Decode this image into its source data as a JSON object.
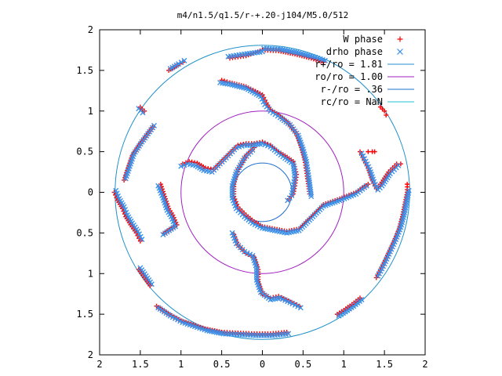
{
  "chart_data": {
    "type": "scatter",
    "title": "m4/n1.5/q1.5/r-+.20-j104/M5.0/512",
    "xlim": [
      -2,
      2
    ],
    "ylim": [
      -2,
      2
    ],
    "x_ticks": [
      -2,
      -1.5,
      -1,
      -0.5,
      0,
      0.5,
      1,
      1.5,
      2
    ],
    "y_ticks": [
      -2,
      -1.5,
      -1,
      -0.5,
      0,
      0.5,
      1,
      1.5,
      2
    ],
    "x_tick_labels": [
      "2",
      "1.5",
      "1",
      "0.5",
      "0",
      "0.5",
      "1",
      "1.5",
      "2"
    ],
    "y_tick_labels": [
      "2",
      "1.5",
      "1",
      "0.5",
      "0",
      "0.5",
      "1",
      "1.5",
      "2"
    ],
    "grid": false,
    "legend_position": "top-right",
    "series": [
      {
        "name": "W phase",
        "marker": "plus",
        "color": "#ff0000",
        "arms": [
          [
            [
              -0.98,
              0.35
            ],
            [
              -0.9,
              0.38
            ],
            [
              -0.8,
              0.36
            ],
            [
              -0.7,
              0.3
            ],
            [
              -0.6,
              0.28
            ],
            [
              -0.5,
              0.38
            ],
            [
              -0.4,
              0.48
            ],
            [
              -0.3,
              0.58
            ],
            [
              -0.2,
              0.6
            ],
            [
              -0.1,
              0.6
            ],
            [
              0.0,
              0.62
            ],
            [
              0.1,
              0.58
            ],
            [
              0.2,
              0.5
            ],
            [
              0.28,
              0.45
            ],
            [
              0.38,
              0.38
            ],
            [
              0.42,
              0.22
            ],
            [
              0.4,
              0.08
            ],
            [
              0.38,
              -0.02
            ],
            [
              0.33,
              -0.08
            ]
          ],
          [
            [
              0.58,
              -0.02
            ],
            [
              0.55,
              0.2
            ],
            [
              0.52,
              0.4
            ],
            [
              0.48,
              0.55
            ],
            [
              0.42,
              0.72
            ],
            [
              0.32,
              0.85
            ],
            [
              0.2,
              0.95
            ],
            [
              0.1,
              1.02
            ],
            [
              0.05,
              1.1
            ],
            [
              0.0,
              1.2
            ],
            [
              -0.2,
              1.3
            ],
            [
              -0.4,
              1.35
            ],
            [
              -0.5,
              1.38
            ]
          ],
          [
            [
              -0.1,
              0.55
            ],
            [
              -0.2,
              0.45
            ],
            [
              -0.3,
              0.28
            ],
            [
              -0.35,
              0.1
            ],
            [
              -0.35,
              -0.05
            ],
            [
              -0.3,
              -0.18
            ],
            [
              -0.2,
              -0.28
            ],
            [
              -0.1,
              -0.36
            ],
            [
              0.0,
              -0.42
            ],
            [
              0.15,
              -0.45
            ],
            [
              0.3,
              -0.48
            ],
            [
              0.45,
              -0.45
            ],
            [
              0.6,
              -0.3
            ],
            [
              0.75,
              -0.15
            ],
            [
              0.95,
              -0.08
            ],
            [
              1.15,
              0.0
            ],
            [
              1.3,
              0.1
            ]
          ],
          [
            [
              -0.35,
              -0.52
            ],
            [
              -0.3,
              -0.65
            ],
            [
              -0.2,
              -0.75
            ],
            [
              -0.1,
              -0.8
            ],
            [
              -0.05,
              -0.95
            ],
            [
              -0.05,
              -1.1
            ],
            [
              0.0,
              -1.25
            ],
            [
              0.1,
              -1.3
            ],
            [
              0.2,
              -1.28
            ],
            [
              0.35,
              -1.35
            ],
            [
              0.45,
              -1.4
            ]
          ],
          [
            [
              -1.25,
              0.1
            ],
            [
              -1.2,
              -0.05
            ],
            [
              -1.15,
              -0.2
            ],
            [
              -1.1,
              -0.28
            ],
            [
              -1.05,
              -0.4
            ],
            [
              -1.2,
              -0.5
            ]
          ],
          [
            [
              -1.82,
              0.0
            ],
            [
              -1.78,
              -0.1
            ],
            [
              -1.72,
              -0.2
            ],
            [
              -1.68,
              -0.3
            ],
            [
              -1.62,
              -0.4
            ],
            [
              -1.55,
              -0.5
            ],
            [
              -1.5,
              -0.6
            ]
          ],
          [
            [
              -1.35,
              0.8
            ],
            [
              -1.5,
              0.6
            ],
            [
              -1.6,
              0.45
            ],
            [
              -1.65,
              0.3
            ],
            [
              -1.7,
              0.15
            ]
          ],
          [
            [
              -1.52,
              -0.95
            ],
            [
              -1.45,
              -1.05
            ],
            [
              -1.38,
              -1.15
            ]
          ],
          [
            [
              -1.3,
              -1.4
            ],
            [
              -1.15,
              -1.5
            ],
            [
              -1.0,
              -1.58
            ],
            [
              -0.85,
              -1.63
            ],
            [
              -0.7,
              -1.68
            ],
            [
              -0.5,
              -1.72
            ],
            [
              -0.3,
              -1.73
            ],
            [
              -0.1,
              -1.74
            ],
            [
              0.1,
              -1.74
            ],
            [
              0.3,
              -1.72
            ]
          ],
          [
            [
              0.92,
              -1.5
            ],
            [
              1.0,
              -1.45
            ],
            [
              1.1,
              -1.38
            ],
            [
              1.2,
              -1.3
            ]
          ],
          [
            [
              1.4,
              -1.05
            ],
            [
              1.48,
              -0.9
            ],
            [
              1.55,
              -0.75
            ],
            [
              1.62,
              -0.6
            ],
            [
              1.68,
              -0.45
            ],
            [
              1.72,
              -0.3
            ],
            [
              1.75,
              -0.15
            ],
            [
              1.78,
              0.0
            ],
            [
              1.78,
              0.1
            ]
          ],
          [
            [
              1.2,
              0.5
            ],
            [
              1.25,
              0.4
            ],
            [
              1.3,
              0.3
            ],
            [
              1.35,
              0.15
            ],
            [
              1.4,
              0.05
            ],
            [
              1.45,
              0.1
            ],
            [
              1.55,
              0.25
            ],
            [
              1.65,
              0.35
            ],
            [
              1.7,
              0.35
            ]
          ],
          [
            [
              1.45,
              1.05
            ],
            [
              1.5,
              1.0
            ],
            [
              1.52,
              0.95
            ]
          ],
          [
            [
              1.3,
              0.5
            ],
            [
              1.35,
              0.5
            ],
            [
              1.38,
              0.5
            ]
          ],
          [
            [
              0.0,
              1.75
            ],
            [
              0.2,
              1.74
            ],
            [
              0.4,
              1.7
            ],
            [
              0.6,
              1.65
            ],
            [
              0.75,
              1.6
            ]
          ],
          [
            [
              -0.4,
              1.65
            ],
            [
              -0.2,
              1.68
            ],
            [
              0.0,
              1.75
            ]
          ],
          [
            [
              -1.15,
              1.5
            ],
            [
              -1.05,
              1.56
            ],
            [
              -0.98,
              1.6
            ]
          ],
          [
            [
              -1.5,
              1.05
            ],
            [
              -1.45,
              1.0
            ]
          ]
        ]
      },
      {
        "name": "drho phase",
        "marker": "cross",
        "color": "#3a8fe8",
        "arms": [
          [
            [
              -1.0,
              0.32
            ],
            [
              -0.92,
              0.35
            ],
            [
              -0.82,
              0.33
            ],
            [
              -0.72,
              0.27
            ],
            [
              -0.62,
              0.25
            ],
            [
              -0.52,
              0.35
            ],
            [
              -0.42,
              0.45
            ],
            [
              -0.32,
              0.55
            ],
            [
              -0.22,
              0.58
            ],
            [
              -0.12,
              0.58
            ],
            [
              0.0,
              0.6
            ],
            [
              0.1,
              0.56
            ],
            [
              0.2,
              0.48
            ],
            [
              0.28,
              0.42
            ],
            [
              0.38,
              0.35
            ],
            [
              0.4,
              0.2
            ],
            [
              0.38,
              0.06
            ],
            [
              0.36,
              -0.04
            ],
            [
              0.31,
              -0.1
            ]
          ],
          [
            [
              0.6,
              -0.05
            ],
            [
              0.57,
              0.18
            ],
            [
              0.54,
              0.38
            ],
            [
              0.5,
              0.53
            ],
            [
              0.44,
              0.7
            ],
            [
              0.34,
              0.83
            ],
            [
              0.22,
              0.92
            ],
            [
              0.1,
              1.0
            ],
            [
              0.03,
              1.08
            ],
            [
              -0.02,
              1.18
            ],
            [
              -0.2,
              1.28
            ],
            [
              -0.4,
              1.33
            ],
            [
              -0.52,
              1.35
            ]
          ],
          [
            [
              -0.12,
              0.52
            ],
            [
              -0.22,
              0.42
            ],
            [
              -0.32,
              0.25
            ],
            [
              -0.37,
              0.08
            ],
            [
              -0.37,
              -0.07
            ],
            [
              -0.32,
              -0.2
            ],
            [
              -0.22,
              -0.3
            ],
            [
              -0.12,
              -0.38
            ],
            [
              0.0,
              -0.44
            ],
            [
              0.15,
              -0.47
            ],
            [
              0.3,
              -0.5
            ],
            [
              0.45,
              -0.47
            ],
            [
              0.6,
              -0.32
            ],
            [
              0.75,
              -0.17
            ],
            [
              0.95,
              -0.1
            ],
            [
              1.15,
              -0.02
            ],
            [
              1.28,
              0.08
            ]
          ],
          [
            [
              -0.37,
              -0.5
            ],
            [
              -0.32,
              -0.63
            ],
            [
              -0.22,
              -0.73
            ],
            [
              -0.12,
              -0.78
            ],
            [
              -0.07,
              -0.93
            ],
            [
              -0.07,
              -1.08
            ],
            [
              -0.02,
              -1.23
            ],
            [
              0.1,
              -1.32
            ],
            [
              0.22,
              -1.3
            ],
            [
              0.37,
              -1.37
            ],
            [
              0.47,
              -1.42
            ]
          ],
          [
            [
              -1.28,
              0.08
            ],
            [
              -1.22,
              -0.07
            ],
            [
              -1.17,
              -0.22
            ],
            [
              -1.12,
              -0.3
            ],
            [
              -1.07,
              -0.42
            ],
            [
              -1.22,
              -0.52
            ]
          ],
          [
            [
              -1.8,
              0.02
            ],
            [
              -1.76,
              -0.08
            ],
            [
              -1.7,
              -0.18
            ],
            [
              -1.66,
              -0.28
            ],
            [
              -1.6,
              -0.38
            ],
            [
              -1.53,
              -0.48
            ],
            [
              -1.48,
              -0.58
            ]
          ],
          [
            [
              -1.33,
              0.82
            ],
            [
              -1.48,
              0.62
            ],
            [
              -1.58,
              0.47
            ],
            [
              -1.63,
              0.32
            ],
            [
              -1.68,
              0.17
            ]
          ],
          [
            [
              -1.5,
              -0.93
            ],
            [
              -1.43,
              -1.03
            ],
            [
              -1.36,
              -1.13
            ]
          ],
          [
            [
              -1.28,
              -1.42
            ],
            [
              -1.13,
              -1.52
            ],
            [
              -0.98,
              -1.6
            ],
            [
              -0.83,
              -1.65
            ],
            [
              -0.68,
              -1.7
            ],
            [
              -0.48,
              -1.74
            ],
            [
              -0.28,
              -1.75
            ],
            [
              -0.08,
              -1.76
            ],
            [
              0.12,
              -1.76
            ],
            [
              0.32,
              -1.74
            ]
          ],
          [
            [
              0.94,
              -1.52
            ],
            [
              1.02,
              -1.47
            ],
            [
              1.12,
              -1.4
            ],
            [
              1.22,
              -1.32
            ]
          ],
          [
            [
              1.42,
              -1.03
            ],
            [
              1.5,
              -0.88
            ],
            [
              1.57,
              -0.73
            ],
            [
              1.64,
              -0.58
            ],
            [
              1.7,
              -0.43
            ],
            [
              1.74,
              -0.28
            ],
            [
              1.77,
              -0.13
            ],
            [
              1.8,
              0.02
            ]
          ],
          [
            [
              1.22,
              0.48
            ],
            [
              1.27,
              0.38
            ],
            [
              1.32,
              0.28
            ],
            [
              1.37,
              0.13
            ],
            [
              1.42,
              0.03
            ],
            [
              1.47,
              0.08
            ],
            [
              1.57,
              0.23
            ],
            [
              1.67,
              0.33
            ]
          ],
          [
            [
              0.02,
              1.77
            ],
            [
              0.22,
              1.76
            ],
            [
              0.42,
              1.72
            ],
            [
              0.62,
              1.67
            ],
            [
              0.77,
              1.62
            ]
          ],
          [
            [
              -0.42,
              1.67
            ],
            [
              -0.22,
              1.7
            ],
            [
              0.0,
              1.73
            ]
          ],
          [
            [
              -1.13,
              1.52
            ],
            [
              -1.03,
              1.58
            ],
            [
              -0.96,
              1.62
            ]
          ],
          [
            [
              -1.52,
              1.03
            ],
            [
              -1.47,
              0.98
            ]
          ]
        ]
      }
    ],
    "circles": [
      {
        "label": "r+/ro = 1.81",
        "radius": 1.81,
        "color": "#1e90c8"
      },
      {
        "label": "ro/ro = 1.00",
        "radius": 1.0,
        "color": "#a020c0"
      },
      {
        "label": "r-/ro = .36",
        "radius": 0.36,
        "color": "#1e6ecc"
      },
      {
        "label": "rc/ro = NaN",
        "radius": null,
        "color": "#20c0d0"
      }
    ]
  }
}
